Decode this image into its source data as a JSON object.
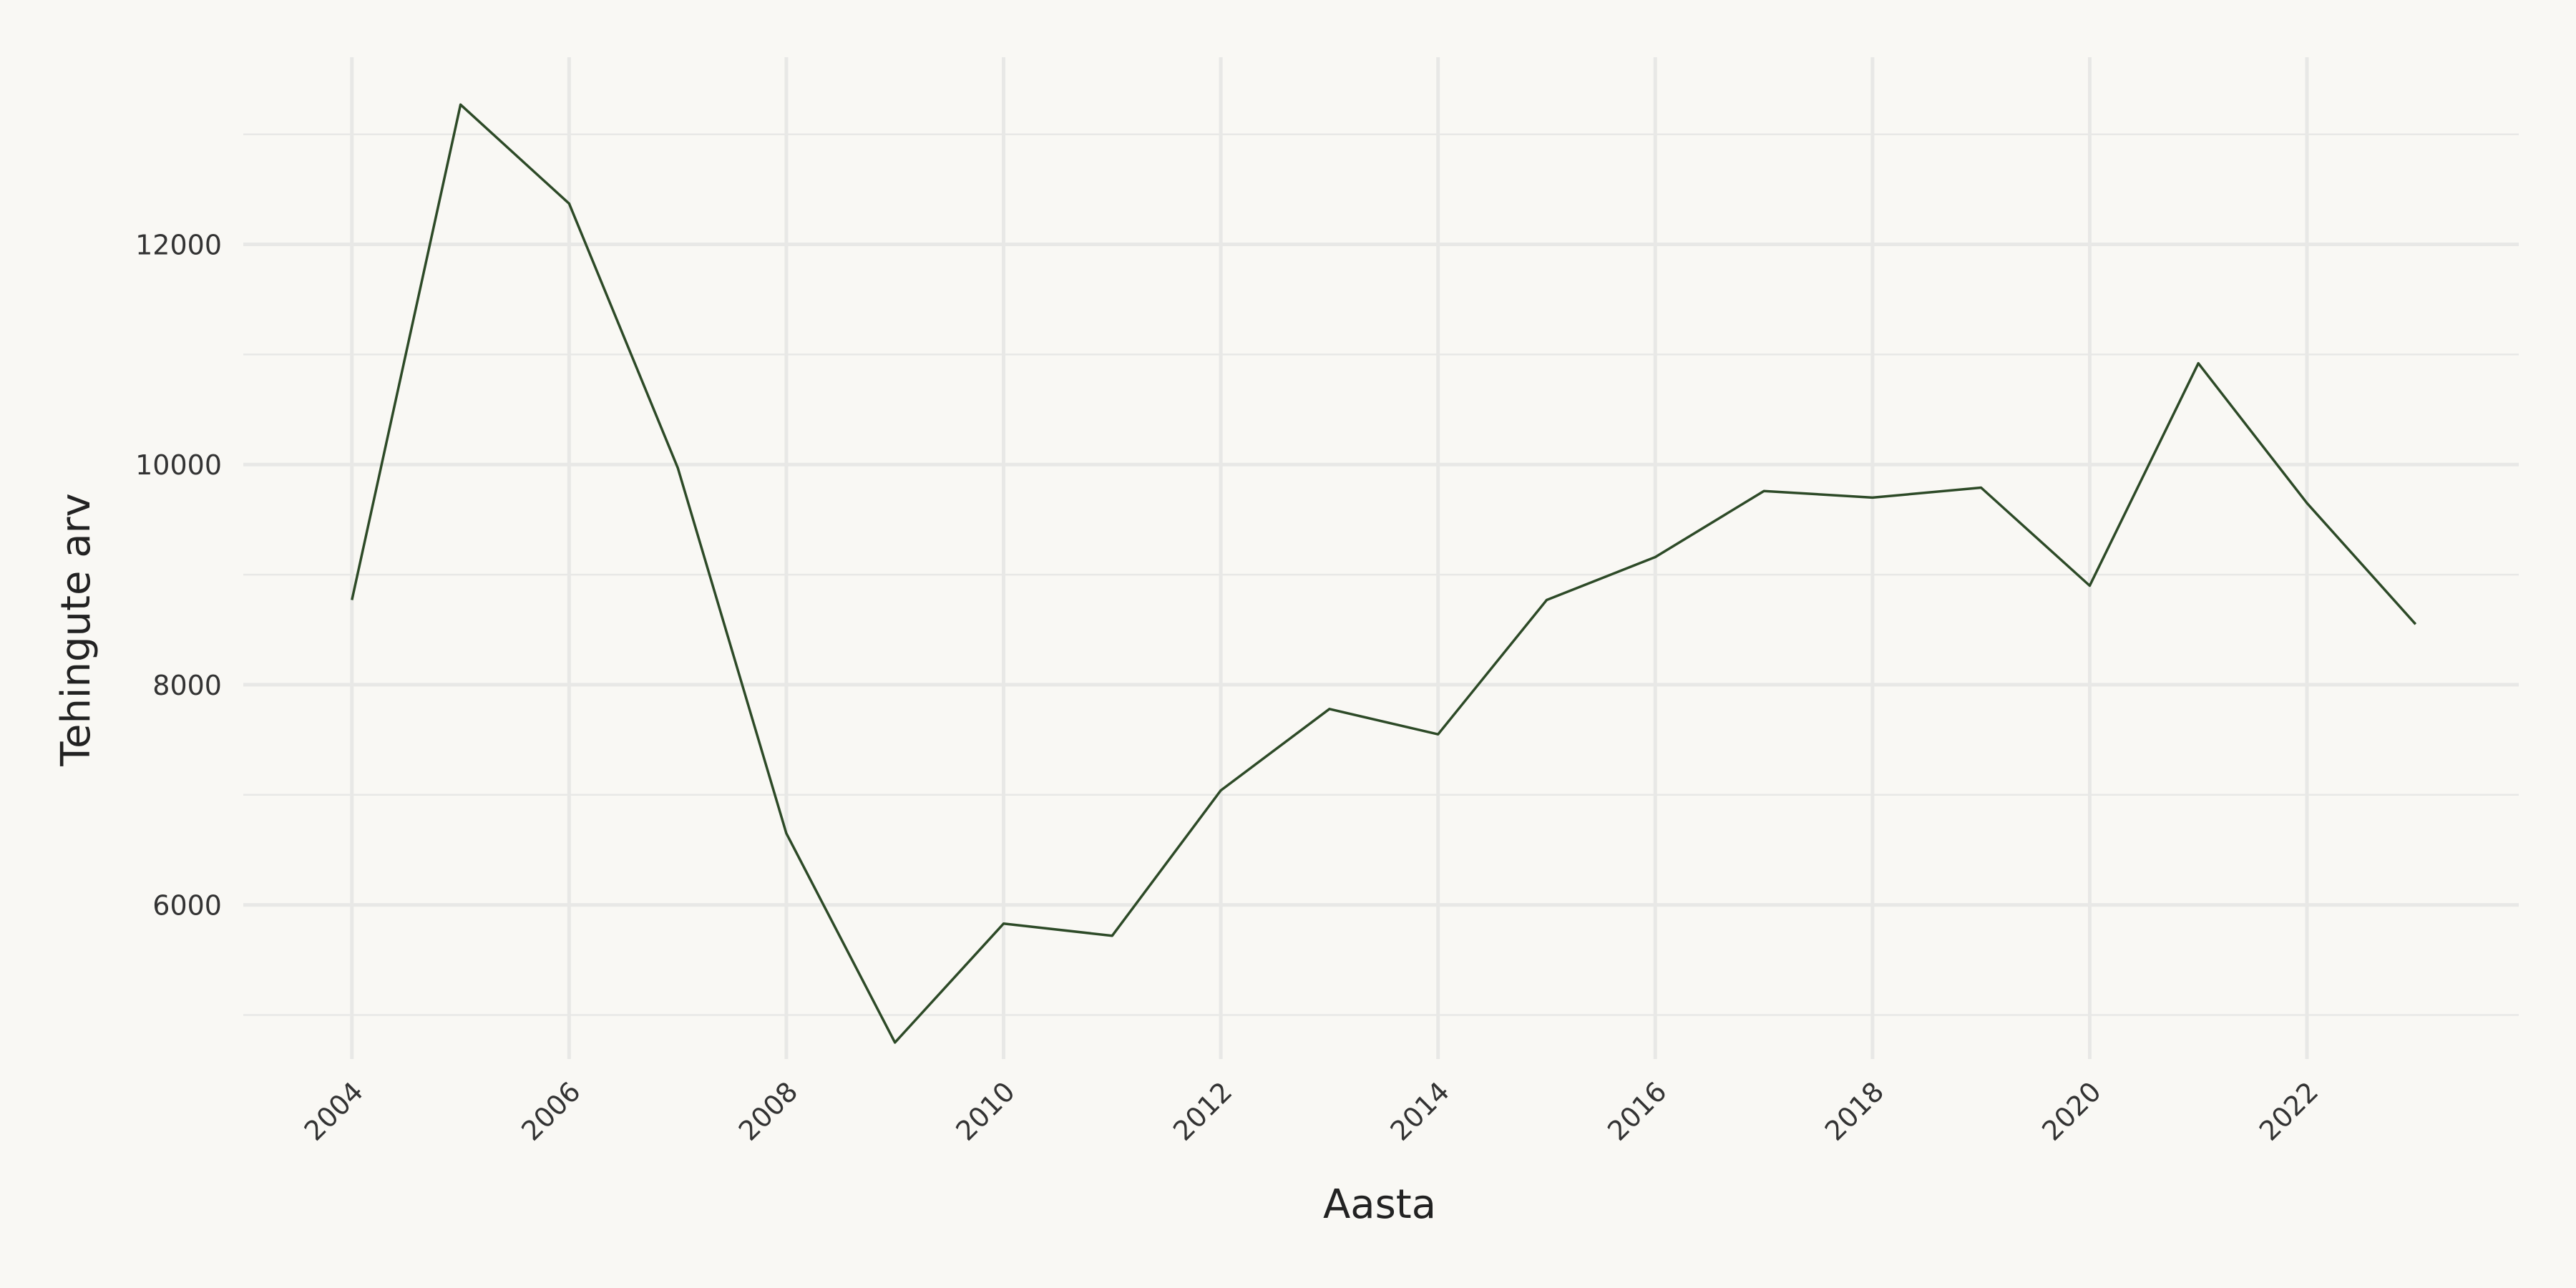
{
  "chart_data": {
    "type": "line",
    "xlabel": "Aasta",
    "ylabel": "Tehingute arv",
    "x": [
      2004,
      2005,
      2006,
      2007,
      2008,
      2009,
      2010,
      2011,
      2012,
      2013,
      2014,
      2015,
      2016,
      2017,
      2018,
      2019,
      2020,
      2021,
      2022,
      2023
    ],
    "series": [
      {
        "values": [
          8770,
          13270,
          12370,
          9970,
          6650,
          4750,
          5830,
          5720,
          7040,
          7780,
          7550,
          8770,
          9160,
          9760,
          9700,
          9790,
          8900,
          10920,
          9650,
          8550
        ]
      }
    ],
    "xticks": [
      2004,
      2006,
      2008,
      2010,
      2012,
      2014,
      2016,
      2018,
      2020,
      2022
    ],
    "xtick_labels": [
      "2004",
      "2006",
      "2008",
      "2010",
      "2012",
      "2014",
      "2016",
      "2018",
      "2020",
      "2022"
    ],
    "yticks": [
      6000,
      8000,
      10000,
      12000
    ],
    "ytick_labels": [
      "6000",
      "8000",
      "10000",
      "12000"
    ],
    "xlim": [
      2003.0,
      2023.95
    ],
    "ylim": [
      4600,
      13700
    ],
    "grid": true,
    "legend": "none",
    "colors": {
      "line": "#2d4a27",
      "grid": "#e8e8e6",
      "background": "#f9f8f4"
    }
  }
}
